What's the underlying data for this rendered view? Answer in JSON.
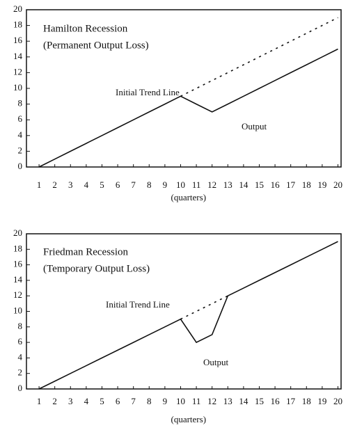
{
  "chart_data": [
    {
      "type": "line",
      "title": "Hamilton Recession",
      "subtitle": "(Permanent Output Loss)",
      "x_label": "(quarters)",
      "x": [
        1,
        2,
        3,
        4,
        5,
        6,
        7,
        8,
        9,
        10,
        11,
        12,
        13,
        14,
        15,
        16,
        17,
        18,
        19,
        20
      ],
      "series": [
        {
          "name": "Initial Trend Line",
          "color": "#111",
          "dashed": true,
          "values": [
            null,
            null,
            null,
            null,
            null,
            null,
            null,
            null,
            null,
            9,
            10,
            11,
            12,
            13,
            14,
            15,
            16,
            17,
            18,
            19
          ]
        },
        {
          "name": "Output",
          "color": "#111",
          "dashed": false,
          "values": [
            0,
            1,
            2,
            3,
            4,
            5,
            6,
            7,
            8,
            9,
            8,
            7,
            8,
            9,
            10,
            11,
            12,
            13,
            14,
            15
          ]
        }
      ],
      "xlim": [
        0.2,
        20.2
      ],
      "xticks": [
        1,
        2,
        3,
        4,
        5,
        6,
        7,
        8,
        9,
        10,
        11,
        12,
        13,
        14,
        15,
        16,
        17,
        18,
        19,
        20
      ],
      "ylim": [
        0,
        20
      ],
      "yticks": [
        0,
        2,
        4,
        6,
        8,
        10,
        12,
        14,
        16,
        18,
        20
      ]
    },
    {
      "type": "line",
      "title": "Friedman Recession",
      "subtitle": "(Temporary Output Loss)",
      "x_label": "(quarters)",
      "x": [
        1,
        2,
        3,
        4,
        5,
        6,
        7,
        8,
        9,
        10,
        11,
        12,
        13,
        14,
        15,
        16,
        17,
        18,
        19,
        20
      ],
      "series": [
        {
          "name": "Initial Trend Line",
          "color": "#111",
          "dashed": true,
          "values": [
            null,
            null,
            null,
            null,
            null,
            null,
            null,
            null,
            null,
            9,
            10,
            11,
            12,
            null,
            null,
            null,
            null,
            null,
            null,
            null
          ]
        },
        {
          "name": "Output",
          "color": "#111",
          "dashed": false,
          "values": [
            0,
            1,
            2,
            3,
            4,
            5,
            6,
            7,
            8,
            9,
            6,
            7,
            12,
            13,
            14,
            15,
            16,
            17,
            18,
            19
          ]
        }
      ],
      "xlim": [
        0.2,
        20.2
      ],
      "xticks": [
        1,
        2,
        3,
        4,
        5,
        6,
        7,
        8,
        9,
        10,
        11,
        12,
        13,
        14,
        15,
        16,
        17,
        18,
        19,
        20
      ],
      "ylim": [
        0,
        20
      ],
      "yticks": [
        0,
        2,
        4,
        6,
        8,
        10,
        12,
        14,
        16,
        18,
        20
      ]
    }
  ]
}
